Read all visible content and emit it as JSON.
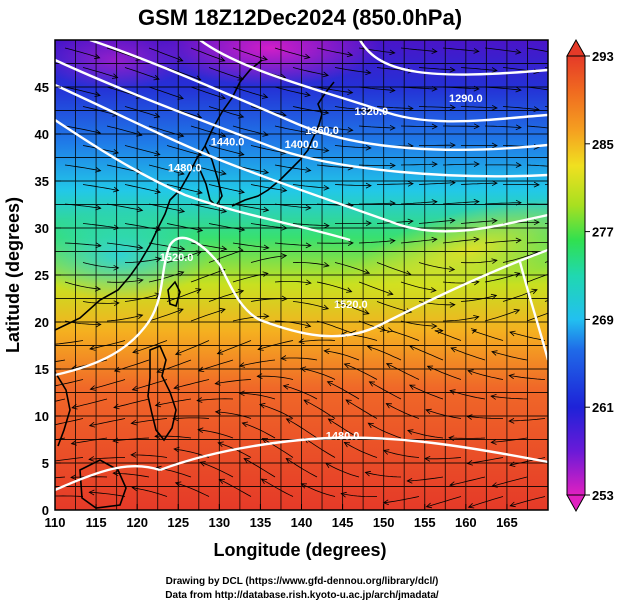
{
  "title": "GSM 18Z12Dec2024 (850.0hPa)",
  "xlabel": "Longitude (degrees)",
  "ylabel": "Latitude  (degrees)",
  "credits": [
    "Drawing by DCL (https://www.gfd-dennou.org/library/dcl/)",
    "Data from http://database.rish.kyoto-u.ac.jp/arch/jmadata/"
  ],
  "chart_data": {
    "type": "heatmap",
    "variable": "temperature with geopotential height contours and streamlines",
    "xlim": [
      110,
      170
    ],
    "ylim": [
      0,
      50
    ],
    "x_ticks": [
      "110",
      "115",
      "120",
      "125",
      "130",
      "135",
      "140",
      "145",
      "150",
      "155",
      "160",
      "165"
    ],
    "y_ticks": [
      "0",
      "5",
      "10",
      "15",
      "20",
      "25",
      "30",
      "35",
      "40",
      "45"
    ],
    "colorbar": {
      "min": 253,
      "max": 293,
      "tick_labels": [
        "293",
        "285",
        "277",
        "269",
        "261",
        "253"
      ],
      "tick_values": [
        293,
        285,
        277,
        269,
        261,
        253
      ],
      "colors": [
        "#d81ec8",
        "#7a1ad8",
        "#2020d8",
        "#1f5ee6",
        "#22a6f0",
        "#20d8c8",
        "#30e060",
        "#9ee020",
        "#f0e020",
        "#f5a020",
        "#f06a20",
        "#e53a28"
      ]
    },
    "contour_labels": [
      {
        "text": "1320.0",
        "lon": 148.5,
        "lat": 42.0
      },
      {
        "text": "1290.0",
        "lon": 160.0,
        "lat": 43.4
      },
      {
        "text": "1360.0",
        "lon": 142.5,
        "lat": 40.0
      },
      {
        "text": "1400.0",
        "lon": 140.0,
        "lat": 38.5
      },
      {
        "text": "1440.0",
        "lon": 131.0,
        "lat": 38.8
      },
      {
        "text": "1480.0",
        "lon": 125.8,
        "lat": 36.0
      },
      {
        "text": "1520.0",
        "lon": 124.8,
        "lat": 26.5
      },
      {
        "text": "1520.0",
        "lon": 146.0,
        "lat": 21.5
      },
      {
        "text": "1480.0",
        "lon": 145.0,
        "lat": 7.5
      }
    ]
  }
}
